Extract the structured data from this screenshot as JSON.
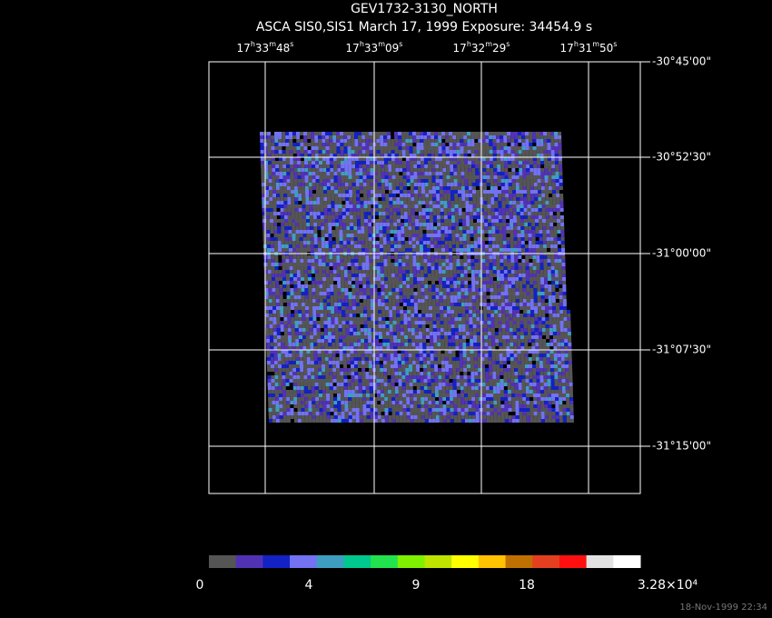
{
  "header": {
    "title": "GEV1732-3130_NORTH",
    "subtitle": "ASCA SIS0,SIS1 March 17, 1999 Exposure: 34454.9 s"
  },
  "ra_labels": [
    "17h33m48s",
    "17h33m09s",
    "17h32m29s",
    "17h31m50s"
  ],
  "dec_labels": [
    "-30°45'00\"",
    "-30°52'30\"",
    "-31°00'00\"",
    "-31°07'30\"",
    "-31°15'00\""
  ],
  "colorbar": {
    "colors": [
      "#555555",
      "#5232b4",
      "#1222c4",
      "#7272f2",
      "#3e9ec2",
      "#00c88e",
      "#22e24e",
      "#7ef000",
      "#bee400",
      "#ffff00",
      "#ffc200",
      "#c07000",
      "#e44020",
      "#ff1010",
      "#e2e2e2",
      "#ffffff"
    ],
    "labels": [
      "0",
      "4",
      "9",
      "18",
      "3.28×10⁴"
    ]
  },
  "footer": "18-Nov-1999 22:34"
}
